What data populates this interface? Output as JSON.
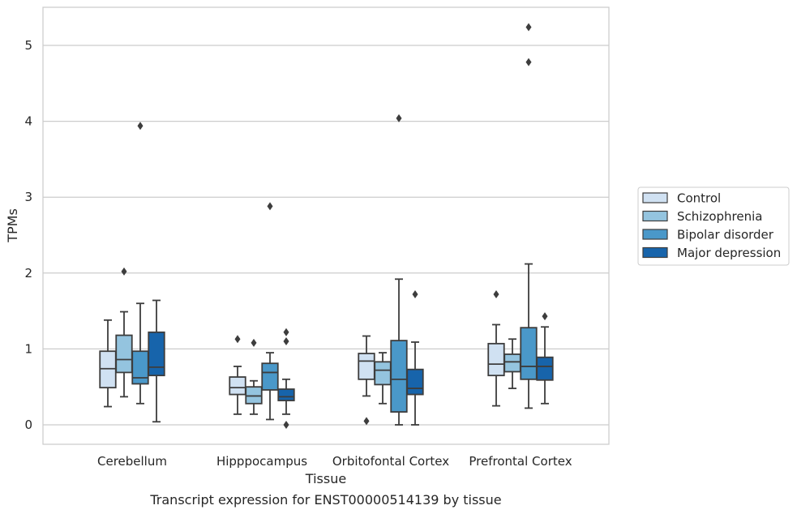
{
  "caption": "Transcript expression for ENST00000514139 by tissue",
  "chart_data": {
    "type": "box",
    "title": "",
    "xlabel": "Tissue",
    "ylabel": "TPMs",
    "ylim": [
      -0.25,
      5.5
    ],
    "yticks": [
      0,
      1,
      2,
      3,
      4,
      5
    ],
    "grid": "horizontal",
    "legend_placement": "right-center",
    "categories": [
      "Cerebellum",
      "Hipppocampus",
      "Orbitofontal Cortex",
      "Prefrontal Cortex"
    ],
    "series": [
      {
        "name": "Control",
        "color": "#d0e1f2",
        "boxes": [
          {
            "whislo": 0.24,
            "q1": 0.49,
            "med": 0.74,
            "q3": 0.97,
            "whishi": 1.38,
            "fliers": []
          },
          {
            "whislo": 0.14,
            "q1": 0.4,
            "med": 0.49,
            "q3": 0.63,
            "whishi": 0.77,
            "fliers": [
              1.13
            ]
          },
          {
            "whislo": 0.38,
            "q1": 0.6,
            "med": 0.84,
            "q3": 0.94,
            "whishi": 1.17,
            "fliers": [
              0.05
            ]
          },
          {
            "whislo": 0.25,
            "q1": 0.65,
            "med": 0.8,
            "q3": 1.07,
            "whishi": 1.32,
            "fliers": [
              1.72
            ]
          }
        ]
      },
      {
        "name": "Schizophrenia",
        "color": "#94c4df",
        "boxes": [
          {
            "whislo": 0.37,
            "q1": 0.69,
            "med": 0.86,
            "q3": 1.18,
            "whishi": 1.49,
            "fliers": [
              2.02
            ]
          },
          {
            "whislo": 0.14,
            "q1": 0.28,
            "med": 0.38,
            "q3": 0.5,
            "whishi": 0.58,
            "fliers": [
              1.08
            ]
          },
          {
            "whislo": 0.28,
            "q1": 0.53,
            "med": 0.72,
            "q3": 0.83,
            "whishi": 0.95,
            "fliers": []
          },
          {
            "whislo": 0.48,
            "q1": 0.7,
            "med": 0.83,
            "q3": 0.93,
            "whishi": 1.13,
            "fliers": []
          }
        ]
      },
      {
        "name": "Bipolar disorder",
        "color": "#4a98c9",
        "boxes": [
          {
            "whislo": 0.28,
            "q1": 0.54,
            "med": 0.62,
            "q3": 0.97,
            "whishi": 1.6,
            "fliers": [
              3.94
            ]
          },
          {
            "whislo": 0.07,
            "q1": 0.46,
            "med": 0.69,
            "q3": 0.81,
            "whishi": 0.95,
            "fliers": [
              2.88
            ]
          },
          {
            "whislo": 0.0,
            "q1": 0.17,
            "med": 0.6,
            "q3": 1.11,
            "whishi": 1.92,
            "fliers": [
              4.04
            ]
          },
          {
            "whislo": 0.22,
            "q1": 0.6,
            "med": 0.77,
            "q3": 1.28,
            "whishi": 2.12,
            "fliers": [
              4.78,
              5.24
            ]
          }
        ]
      },
      {
        "name": "Major depression",
        "color": "#1764ab",
        "boxes": [
          {
            "whislo": 0.04,
            "q1": 0.65,
            "med": 0.76,
            "q3": 1.22,
            "whishi": 1.64,
            "fliers": []
          },
          {
            "whislo": 0.14,
            "q1": 0.32,
            "med": 0.37,
            "q3": 0.47,
            "whishi": 0.6,
            "fliers": [
              1.22,
              1.1,
              0.0
            ]
          },
          {
            "whislo": 0.0,
            "q1": 0.4,
            "med": 0.48,
            "q3": 0.73,
            "whishi": 1.09,
            "fliers": [
              1.72
            ]
          },
          {
            "whislo": 0.28,
            "q1": 0.59,
            "med": 0.77,
            "q3": 0.89,
            "whishi": 1.29,
            "fliers": [
              1.43
            ]
          }
        ]
      }
    ]
  }
}
